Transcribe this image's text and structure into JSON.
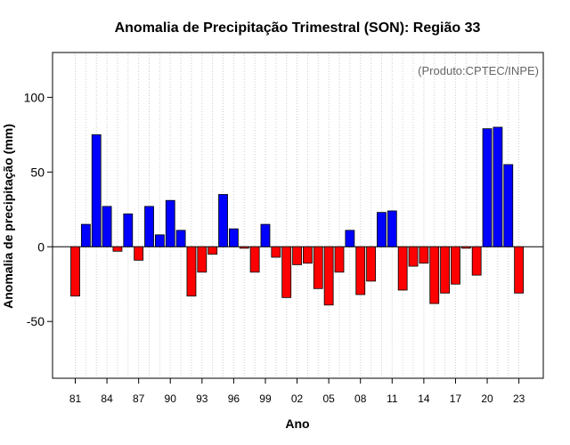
{
  "chart_data": {
    "type": "bar",
    "title": "Anomalia de Precipitação Trimestral (SON): Região 33",
    "xlabel": "Ano",
    "ylabel": "Anomalia de precipitação (mm)",
    "credit": "(Produto:CPTEC/INPE)",
    "ylim": [
      -88,
      130
    ],
    "yticks": [
      -50,
      0,
      50,
      100
    ],
    "ytick_labels": [
      "-50",
      "0",
      "50",
      "100"
    ],
    "grid": "vertical-dotted",
    "positive_color": "#0000ff",
    "negative_color": "#ff0000",
    "years": [
      1981,
      1982,
      1983,
      1984,
      1985,
      1986,
      1987,
      1988,
      1989,
      1990,
      1991,
      1992,
      1993,
      1994,
      1995,
      1996,
      1997,
      1998,
      1999,
      2000,
      2001,
      2002,
      2003,
      2004,
      2005,
      2006,
      2007,
      2008,
      2009,
      2010,
      2011,
      2012,
      2013,
      2014,
      2015,
      2016,
      2017,
      2018,
      2019,
      2020,
      2021,
      2022,
      2023
    ],
    "values": [
      -33,
      15,
      75,
      27,
      -3,
      22,
      -9,
      27,
      8,
      31,
      11,
      -33,
      -17,
      -5,
      35,
      12,
      -1,
      -17,
      15,
      -7,
      -34,
      -12,
      -11,
      -28,
      -39,
      -17,
      11,
      -32,
      -23,
      23,
      24,
      -29,
      -13,
      -11,
      -38,
      -31,
      -25,
      -1,
      -19,
      79,
      80,
      55,
      -31
    ],
    "xtick_years": [
      1981,
      1984,
      1987,
      1990,
      1993,
      1996,
      1999,
      2002,
      2005,
      2008,
      2011,
      2014,
      2017,
      2020,
      2023
    ],
    "xtick_labels": [
      "81",
      "84",
      "87",
      "90",
      "93",
      "96",
      "99",
      "02",
      "05",
      "08",
      "11",
      "14",
      "17",
      "20",
      "23"
    ]
  }
}
